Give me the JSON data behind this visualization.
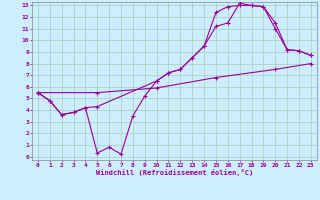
{
  "xlabel": "Windchill (Refroidissement éolien,°C)",
  "bg_color": "#cceeff",
  "line_color": "#990099",
  "grid_color": "#aaccbb",
  "xlim": [
    -0.5,
    23.5
  ],
  "ylim": [
    -0.3,
    13.3
  ],
  "xticks": [
    0,
    1,
    2,
    3,
    4,
    5,
    6,
    7,
    8,
    9,
    10,
    11,
    12,
    13,
    14,
    15,
    16,
    17,
    18,
    19,
    20,
    21,
    22,
    23
  ],
  "yticks": [
    0,
    1,
    2,
    3,
    4,
    5,
    6,
    7,
    8,
    9,
    10,
    11,
    12,
    13
  ],
  "line1_x": [
    0,
    1,
    2,
    3,
    4,
    5,
    6,
    7,
    8,
    9,
    10,
    11,
    12,
    13,
    14,
    15,
    16,
    17,
    18,
    19,
    20,
    21,
    22,
    23
  ],
  "line1_y": [
    5.5,
    4.8,
    3.6,
    3.8,
    4.2,
    0.3,
    0.8,
    0.2,
    3.5,
    5.2,
    6.5,
    7.2,
    7.5,
    8.5,
    9.5,
    11.2,
    11.5,
    13.2,
    13.0,
    12.9,
    11.0,
    9.2,
    9.1,
    8.7
  ],
  "line2_x": [
    0,
    1,
    2,
    3,
    4,
    5,
    10,
    11,
    12,
    13,
    14,
    15,
    16,
    17,
    18,
    19,
    20,
    21,
    22,
    23
  ],
  "line2_y": [
    5.5,
    4.8,
    3.6,
    3.8,
    4.2,
    4.3,
    6.5,
    7.2,
    7.5,
    8.5,
    9.5,
    12.4,
    12.9,
    13.0,
    13.0,
    12.9,
    11.5,
    9.2,
    9.1,
    8.7
  ],
  "line3_x": [
    0,
    5,
    10,
    15,
    20,
    23
  ],
  "line3_y": [
    5.5,
    5.5,
    5.9,
    6.8,
    7.5,
    8.0
  ]
}
